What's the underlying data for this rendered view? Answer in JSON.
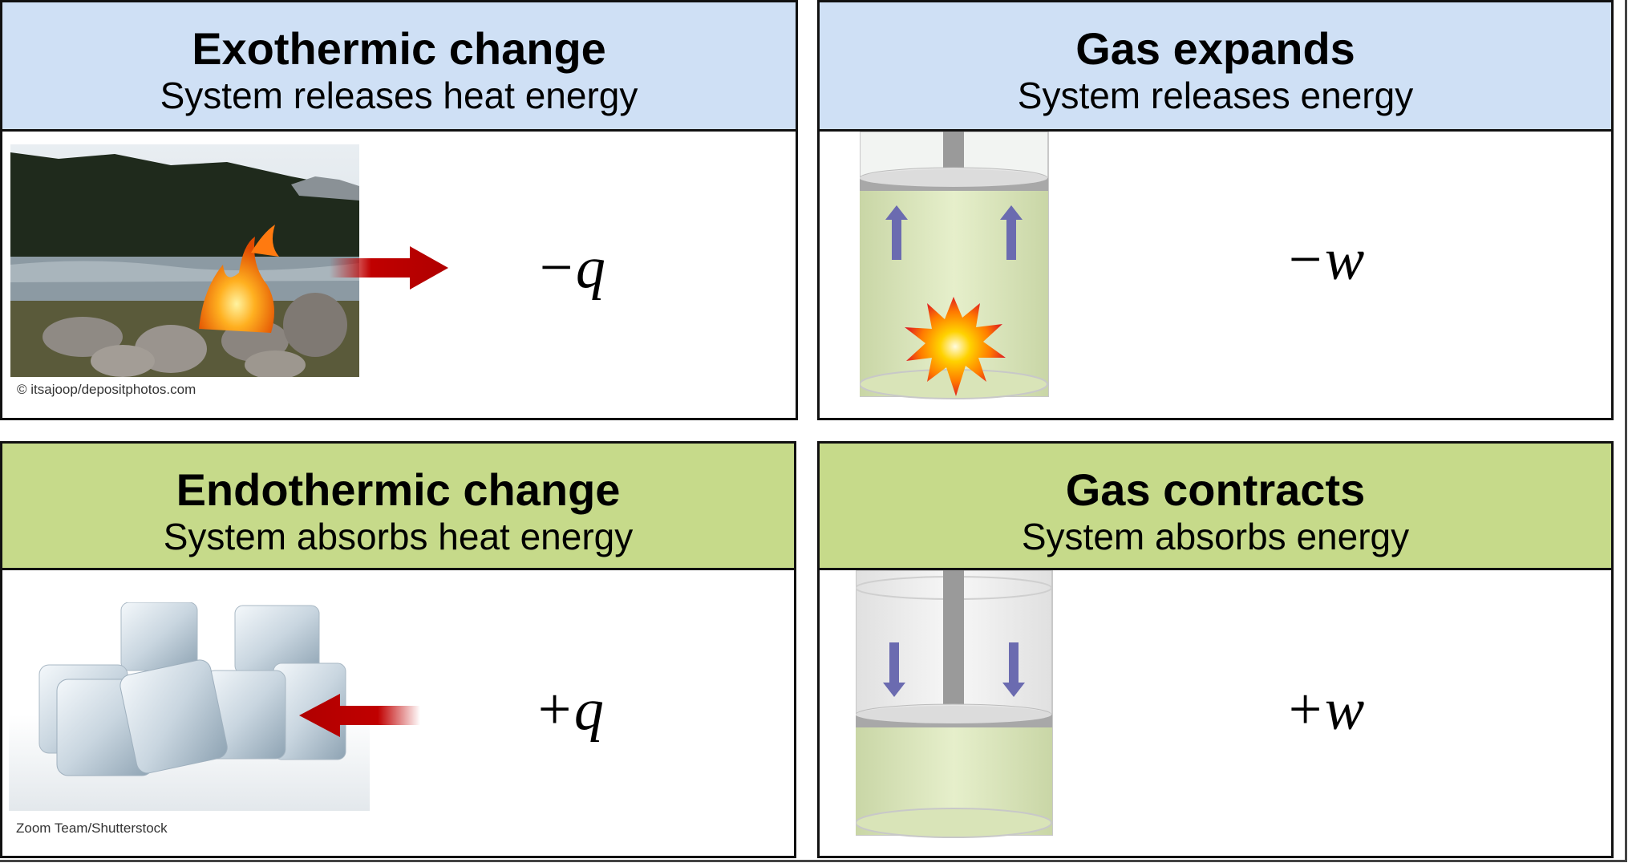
{
  "panels": {
    "exothermic": {
      "title": "Exothermic change",
      "subtitle": "System releases heat energy",
      "symbol": "−q",
      "credit": "© itsajoop/depositphotos.com",
      "header_color": "#cfe0f5"
    },
    "gas_expands": {
      "title": "Gas expands",
      "subtitle": "System releases energy",
      "symbol": "−w",
      "header_color": "#cfe0f5"
    },
    "endothermic": {
      "title": "Endothermic change",
      "subtitle": "System absorbs heat energy",
      "symbol": "+q",
      "credit": "Zoom Team/Shutterstock",
      "header_color": "#c6da8a"
    },
    "gas_contracts": {
      "title": "Gas contracts",
      "subtitle": "System absorbs energy",
      "symbol": "+w",
      "header_color": "#c6da8a"
    }
  },
  "colors": {
    "heat_arrow": "#c00000",
    "piston_arrow": "#6b6bb0",
    "gas_fill": "#dde9b8"
  },
  "icons": [
    "campfire-photo",
    "ice-cubes-photo",
    "piston-cylinder-diagram",
    "explosion-icon",
    "heat-arrow-icon"
  ]
}
